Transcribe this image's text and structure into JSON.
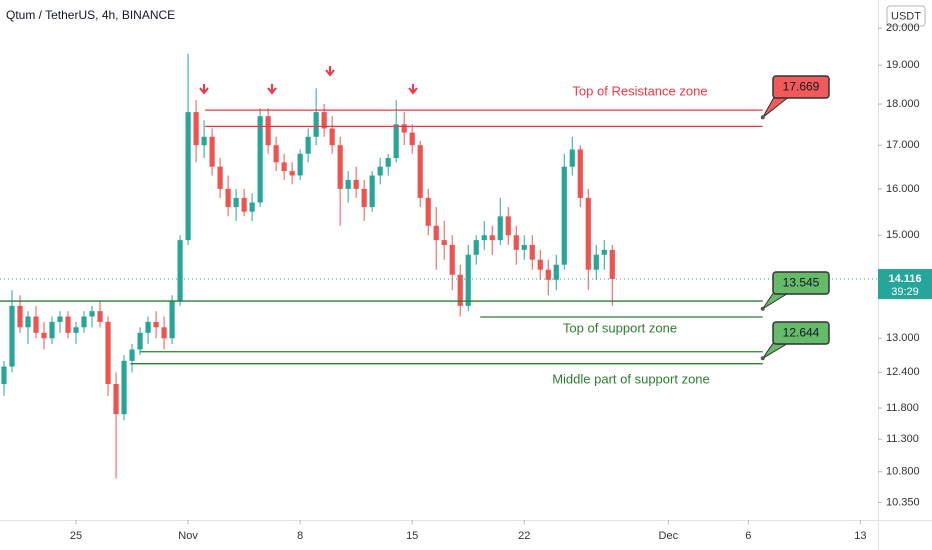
{
  "chart_data": {
    "type": "candlestick",
    "title": "Qtum / TetherUS, 4h, BINANCE",
    "currency": "USDT",
    "log_scale": true,
    "up_color": "#26a69a",
    "down_color": "#ef5350",
    "x": [
      20.5,
      21,
      21.5,
      22,
      22.5,
      23,
      23.5,
      24,
      24.5,
      25,
      25.5,
      26,
      26.5,
      27,
      27.5,
      28,
      28.5,
      29,
      29.5,
      30,
      30.5,
      31,
      31.5,
      32,
      32.5,
      33,
      33.5,
      34,
      34.5,
      35,
      35.5,
      36,
      36.5,
      37,
      37.5,
      38,
      38.5,
      39,
      39.5,
      40,
      40.5,
      41,
      41.5,
      42,
      42.5,
      43,
      43.5,
      44,
      44.5,
      45,
      45.5,
      46,
      46.5,
      47,
      47.5,
      48,
      48.5,
      49,
      49.5,
      50,
      50.5,
      51,
      51.5,
      52,
      52.5,
      53,
      53.5,
      54,
      54.5,
      55,
      55.5,
      56,
      56.5,
      57,
      57.5,
      58,
      58.5
    ],
    "open": [
      12.2,
      12.5,
      13.6,
      13.2,
      13.4,
      13.1,
      13.0,
      13.3,
      13.4,
      13.1,
      13.2,
      13.4,
      13.5,
      13.3,
      12.2,
      11.7,
      12.6,
      12.8,
      13.1,
      13.3,
      13.2,
      13.0,
      13.7,
      14.9,
      17.8,
      17.0,
      17.2,
      16.5,
      16.0,
      15.6,
      15.8,
      15.5,
      15.7,
      17.7,
      17.0,
      16.6,
      16.4,
      16.3,
      16.8,
      17.2,
      17.8,
      17.4,
      17.0,
      16.0,
      16.2,
      16.0,
      15.6,
      16.3,
      16.5,
      16.7,
      17.5,
      17.3,
      17.0,
      15.8,
      15.2,
      14.9,
      14.8,
      14.2,
      13.6,
      14.6,
      14.9,
      15.0,
      14.9,
      15.4,
      15.0,
      14.7,
      14.8,
      14.5,
      14.3,
      14.1,
      14.4,
      16.5,
      16.9,
      15.8,
      14.3,
      14.6,
      14.7
    ],
    "high": [
      12.6,
      13.9,
      13.8,
      13.5,
      13.6,
      13.3,
      13.4,
      13.5,
      13.5,
      13.3,
      13.5,
      13.6,
      13.7,
      13.4,
      12.4,
      12.7,
      12.9,
      13.2,
      13.4,
      13.5,
      13.4,
      13.8,
      15.0,
      19.3,
      18.1,
      17.6,
      17.4,
      16.7,
      16.3,
      16.0,
      16.0,
      15.9,
      17.9,
      17.9,
      17.2,
      16.8,
      16.6,
      16.9,
      17.4,
      18.4,
      18.0,
      17.7,
      17.2,
      16.4,
      16.5,
      16.2,
      16.4,
      16.7,
      16.8,
      18.1,
      17.8,
      17.5,
      17.1,
      16.0,
      15.6,
      15.3,
      15.0,
      14.4,
      14.8,
      15.0,
      15.3,
      15.2,
      15.8,
      15.6,
      15.2,
      15.0,
      15.0,
      14.7,
      14.5,
      14.6,
      16.8,
      17.2,
      17.0,
      16.0,
      14.8,
      14.9,
      14.8
    ],
    "low": [
      12.0,
      12.4,
      13.1,
      12.9,
      13.0,
      12.8,
      12.9,
      13.1,
      13.0,
      12.9,
      13.1,
      13.2,
      13.2,
      12.0,
      10.7,
      11.6,
      12.4,
      12.7,
      12.9,
      13.0,
      12.8,
      12.9,
      13.6,
      14.8,
      16.6,
      16.7,
      16.3,
      15.8,
      15.4,
      15.3,
      15.4,
      15.3,
      15.6,
      16.8,
      16.4,
      16.2,
      16.1,
      16.2,
      16.6,
      17.0,
      17.2,
      16.8,
      15.2,
      15.7,
      15.8,
      15.3,
      15.5,
      16.1,
      16.3,
      16.6,
      17.0,
      16.8,
      15.6,
      15.0,
      14.3,
      14.5,
      13.9,
      13.4,
      13.5,
      14.4,
      14.7,
      14.6,
      14.8,
      14.8,
      14.4,
      14.5,
      14.3,
      14.1,
      13.8,
      13.9,
      14.3,
      16.3,
      15.6,
      13.9,
      14.1,
      14.3,
      13.6
    ],
    "close": [
      12.5,
      13.6,
      13.2,
      13.4,
      13.1,
      13.0,
      13.3,
      13.4,
      13.1,
      13.2,
      13.4,
      13.5,
      13.3,
      12.2,
      11.7,
      12.6,
      12.8,
      13.1,
      13.3,
      13.2,
      13.0,
      13.7,
      14.9,
      17.8,
      17.0,
      17.2,
      16.5,
      16.0,
      15.6,
      15.8,
      15.5,
      15.7,
      17.7,
      17.0,
      16.6,
      16.4,
      16.3,
      16.8,
      17.2,
      17.8,
      17.4,
      17.0,
      16.0,
      16.2,
      16.0,
      15.6,
      16.3,
      16.5,
      16.7,
      17.5,
      17.3,
      17.0,
      15.8,
      15.2,
      14.9,
      14.8,
      14.2,
      13.6,
      14.6,
      14.9,
      15.0,
      14.9,
      15.4,
      15.0,
      14.7,
      14.8,
      14.5,
      14.3,
      14.1,
      14.4,
      16.5,
      16.9,
      15.8,
      14.3,
      14.6,
      14.7,
      14.116
    ],
    "last_price": {
      "value": 14.116,
      "label": "14.116"
    },
    "countdown": "39:29",
    "xlim": [
      20.25,
      75.1
    ],
    "ylim": [
      10.1,
      20.8
    ],
    "xticks": [
      {
        "value": 25,
        "label": "25"
      },
      {
        "value": 32,
        "label": "Nov"
      },
      {
        "value": 39,
        "label": "8"
      },
      {
        "value": 46,
        "label": "15"
      },
      {
        "value": 53,
        "label": "22"
      },
      {
        "value": 62,
        "label": "Dec"
      },
      {
        "value": 67,
        "label": "6"
      },
      {
        "value": 74,
        "label": "13"
      }
    ],
    "yticks": [
      {
        "value": 10.35,
        "label": "10.350"
      },
      {
        "value": 10.8,
        "label": "10.800"
      },
      {
        "value": 11.3,
        "label": "11.300"
      },
      {
        "value": 11.8,
        "label": "11.800"
      },
      {
        "value": 12.4,
        "label": "12.400"
      },
      {
        "value": 13,
        "label": "13.000"
      },
      {
        "value": 15,
        "label": "15.000"
      },
      {
        "value": 16,
        "label": "16.000"
      },
      {
        "value": 17,
        "label": "17.000"
      },
      {
        "value": 18,
        "label": "18.000"
      },
      {
        "value": 19,
        "label": "19.000"
      },
      {
        "value": 20,
        "label": "20.000"
      }
    ],
    "levels": [
      {
        "value": 17.85,
        "x_start": 33.06,
        "x_end": 67.9,
        "color": "#f23645"
      },
      {
        "value": 17.45,
        "x_start": 33.06,
        "x_end": 67.9,
        "color": "#f23645"
      },
      {
        "value": 13.69,
        "x_start": 20.25,
        "x_end": 67.9,
        "color": "#2e7d32"
      },
      {
        "value": 13.39,
        "x_start": 50.25,
        "x_end": 67.9,
        "color": "#2e7d32"
      },
      {
        "value": 12.76,
        "x_start": 29,
        "x_end": 67.9,
        "color": "#2e7d32"
      },
      {
        "value": 12.55,
        "x_start": 28.4,
        "x_end": 67.9,
        "color": "#2e7d32"
      }
    ],
    "callouts": [
      {
        "value": 17.669,
        "label": "17.669",
        "color": "#f05a5a"
      },
      {
        "value": 13.545,
        "label": "13.545",
        "color": "#66bb6a"
      },
      {
        "value": 12.644,
        "label": "12.644",
        "color": "#66bb6a"
      }
    ],
    "annotations": [
      {
        "text": "Top of Resistance zone",
        "color": "#f23645"
      },
      {
        "text": "Top of support zone",
        "color": "#2e7d32"
      },
      {
        "text": "Middle part of support zone",
        "color": "#2e7d32"
      }
    ]
  }
}
